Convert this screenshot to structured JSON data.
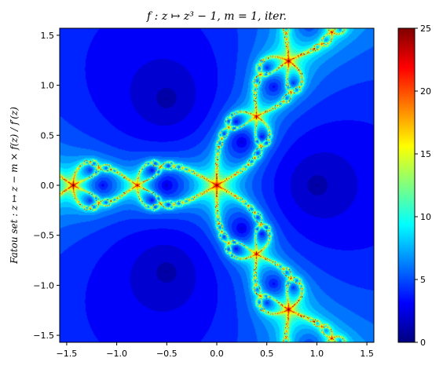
{
  "chart_data": {
    "type": "heatmap",
    "title": "f : z ↦ z³ − 1, m = 1, iter.",
    "ylabel": "Fatou set : z ↦ z − m × f(z) / f′(z)",
    "xlabel": "",
    "xlim": [
      -1.57,
      1.57
    ],
    "ylim": [
      -1.57,
      1.57
    ],
    "x_ticks": [
      -1.5,
      -1.0,
      -0.5,
      0.0,
      0.5,
      1.0,
      1.5
    ],
    "x_tick_labels": [
      "−1.5",
      "−1.0",
      "−0.5",
      "0.0",
      "0.5",
      "1.0",
      "1.5"
    ],
    "y_ticks": [
      -1.5,
      -1.0,
      -0.5,
      0.0,
      0.5,
      1.0,
      1.5
    ],
    "y_tick_labels": [
      "−1.5",
      "−1.0",
      "−0.5",
      "0.0",
      "0.5",
      "1.0",
      "1.5"
    ],
    "colorbar": {
      "colormap": "jet",
      "min": 0,
      "max": 25,
      "ticks": [
        0,
        5,
        10,
        15,
        20,
        25
      ],
      "tick_labels": [
        "0",
        "5",
        "10",
        "15",
        "20",
        "25"
      ]
    },
    "function": "z^3 - 1",
    "multiplicity": 1,
    "roots": [
      {
        "re": 1.0,
        "im": 0.0
      },
      {
        "re": -0.5,
        "im": 0.866
      },
      {
        "re": -0.5,
        "im": -0.866
      }
    ],
    "grid": false
  }
}
